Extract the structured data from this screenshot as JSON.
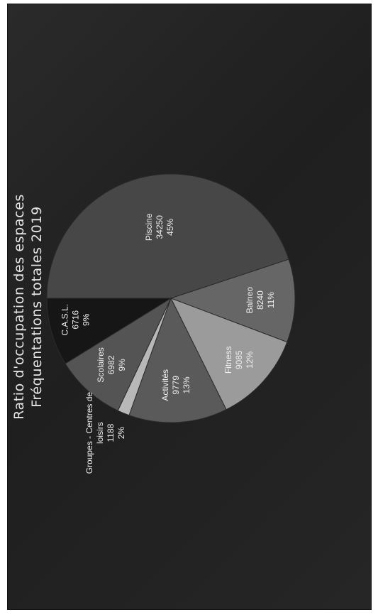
{
  "chart_data": {
    "type": "pie",
    "title": "Ratio d'occupation des espaces",
    "subtitle": "Fréquentations totales 2019",
    "slices": [
      {
        "name": "Piscine",
        "value": 34250,
        "percent": "45%",
        "color": "#474747"
      },
      {
        "name": "Balneo",
        "value": 8240,
        "percent": "11%",
        "color": "#666666"
      },
      {
        "name": "Fitness",
        "value": 9085,
        "percent": "12%",
        "color": "#9b9b9b"
      },
      {
        "name": "Activités",
        "value": 9779,
        "percent": "13%",
        "color": "#5a5a5a"
      },
      {
        "name": "Groupes - Centres de loisirs",
        "value": 1188,
        "percent": "2%",
        "color": "#b8b8b8"
      },
      {
        "name": "Scolaires",
        "value": 6982,
        "percent": "9%",
        "color": "#545454"
      },
      {
        "name": "C.A.S.L.",
        "value": 6716,
        "percent": "9%",
        "color": "#161616"
      }
    ],
    "label_lines": {
      "Piscine": [
        "Piscine",
        "34250",
        "45%"
      ],
      "Balneo": [
        "Balneo",
        "8240",
        "11%"
      ],
      "Fitness": [
        "Fitness",
        "9085",
        "12%"
      ],
      "Activités": [
        "Activités",
        "9779",
        "13%"
      ],
      "Groupes - Centres de loisirs": [
        "Groupes - Centres de",
        "loisirs",
        "1188",
        "2%"
      ],
      "Scolaires": [
        "Scolaires",
        "6982",
        "9%"
      ],
      "C.A.S.L.": [
        "C.A.S.L.",
        "6716",
        "9%"
      ]
    }
  }
}
